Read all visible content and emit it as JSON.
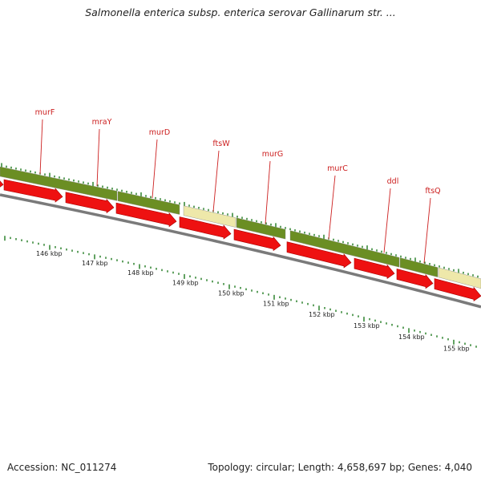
{
  "title": "Salmonella enterica subsp. enterica serovar Gallinarum str. ...",
  "footer": {
    "accession": "Accession: NC_011274",
    "summary": "Topology: circular; Length: 4,658,697 bp; Genes: 4,040"
  },
  "colors": {
    "gene_arrow": "#ee1111",
    "gene_arrow_edge": "#aa0000",
    "olive_band": "#6b8e23",
    "pale_band": "#eee8aa",
    "backbone": "#7a7a7a",
    "tick": "#1e7a1e",
    "label": "#cc1f1f"
  },
  "genes": [
    {
      "name": "murF"
    },
    {
      "name": "mraY"
    },
    {
      "name": "murD"
    },
    {
      "name": "ftsW"
    },
    {
      "name": "murG"
    },
    {
      "name": "murC"
    },
    {
      "name": "ddl"
    },
    {
      "name": "ftsQ"
    }
  ],
  "kbp_ticks": [
    "146 kbp",
    "147 kbp",
    "148 kbp",
    "149 kbp",
    "150 kbp",
    "151 kbp",
    "152 kbp",
    "153 kbp",
    "154 kbp",
    "155 kbp"
  ]
}
